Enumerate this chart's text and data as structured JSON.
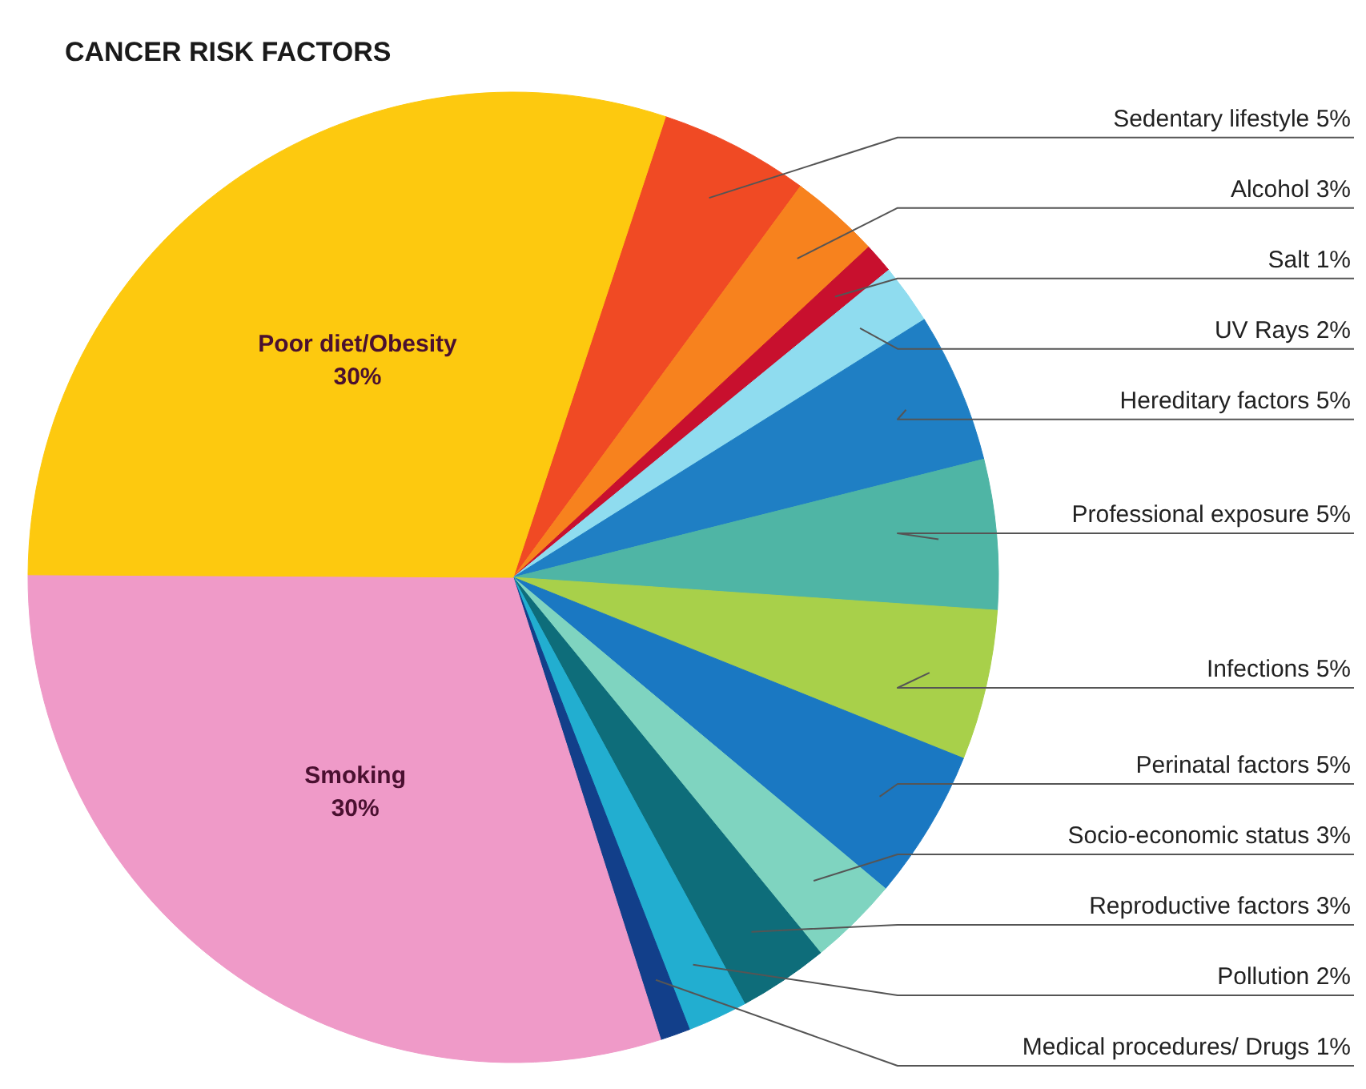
{
  "chart_data": {
    "type": "pie",
    "title": "CANCER RISK FACTORS",
    "categories": [
      "Sedentary lifestyle",
      "Alcohol",
      "Salt",
      "UV Rays",
      "Hereditary factors",
      "Professional exposure",
      "Infections",
      "Perinatal factors",
      "Socio-economic status",
      "Reproductive factors",
      "Pollution",
      "Medical procedures/ Drugs",
      "Smoking",
      "Poor diet/Obesity"
    ],
    "values": [
      5,
      3,
      1,
      2,
      5,
      5,
      5,
      5,
      3,
      3,
      2,
      1,
      30,
      30
    ],
    "value_labels": [
      "5%",
      "3%",
      "1%",
      "2%",
      "5%",
      "5%",
      "5%",
      "5%",
      "3%",
      "3%",
      "2%",
      "1%",
      "30%",
      "30%"
    ],
    "colors": [
      "#f04a24",
      "#f7821e",
      "#c8102e",
      "#8fdcef",
      "#1f7fc4",
      "#4fb5a5",
      "#a8d04a",
      "#1a78c2",
      "#7fd4c0",
      "#0e6d7a",
      "#22aed0",
      "#123f8a",
      "#ef9ac8",
      "#fdc90f"
    ]
  }
}
